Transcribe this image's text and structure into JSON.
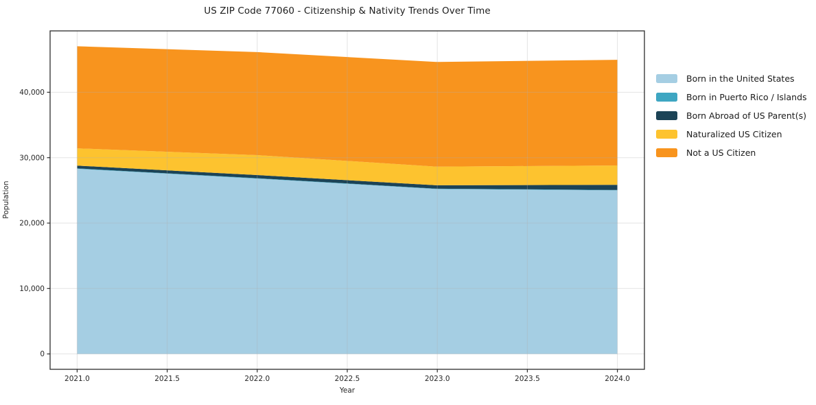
{
  "title": "US ZIP Code 77060 - Citizenship & Nativity Trends Over Time",
  "chart_data": {
    "type": "area",
    "stacked": true,
    "title": "US ZIP Code 77060 - Citizenship & Nativity Trends Over Time",
    "xlabel": "Year",
    "ylabel": "Population",
    "x": [
      2021,
      2022,
      2023,
      2024
    ],
    "series": [
      {
        "name": "Born in the United States",
        "color": "#a5cee3",
        "values": [
          28300,
          26800,
          25200,
          25000
        ]
      },
      {
        "name": "Born in Puerto Rico / Islands",
        "color": "#3ea6c2",
        "values": [
          60,
          60,
          60,
          60
        ]
      },
      {
        "name": "Born Abroad of US Parent(s)",
        "color": "#1c4356",
        "values": [
          420,
          480,
          520,
          800
        ]
      },
      {
        "name": "Naturalized US Citizen",
        "color": "#fdc32f",
        "values": [
          2650,
          3050,
          2850,
          2950
        ]
      },
      {
        "name": "Not a US Citizen",
        "color": "#f8941e",
        "values": [
          15600,
          15750,
          16000,
          16150
        ]
      }
    ],
    "xlim": [
      2020.85,
      2024.15
    ],
    "ylim": [
      -2351,
      49381
    ],
    "xticks": {
      "values": [
        2021.0,
        2021.5,
        2022.0,
        2022.5,
        2023.0,
        2023.5,
        2024.0
      ],
      "labels": [
        "2021.0",
        "2021.5",
        "2022.0",
        "2022.5",
        "2023.0",
        "2023.5",
        "2024.0"
      ]
    },
    "yticks": {
      "values": [
        0,
        10000,
        20000,
        30000,
        40000
      ],
      "labels": [
        "0",
        "10,000",
        "20,000",
        "30,000",
        "40,000"
      ]
    },
    "grid": true,
    "legend_position": "right-outside"
  },
  "colors": {
    "grid": "#b0b0b0",
    "spine": "#2b2b2b",
    "tick_text": "#262626",
    "background": "#ffffff"
  }
}
